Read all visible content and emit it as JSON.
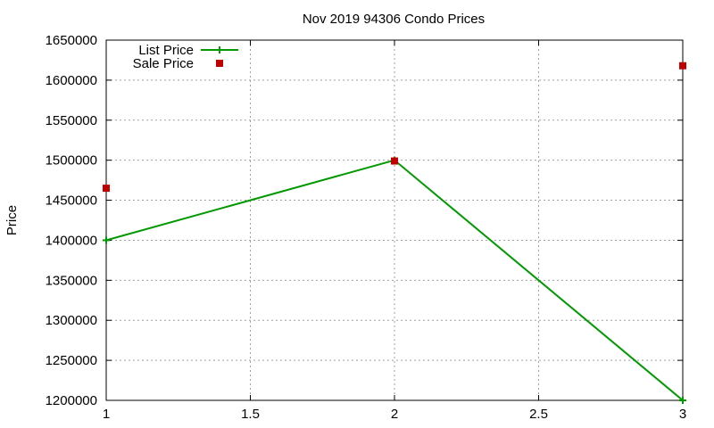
{
  "chart_data": {
    "type": "line",
    "title": "Nov 2019 94306 Condo Prices",
    "xlabel": "",
    "ylabel": "Price",
    "xlim": [
      1,
      3
    ],
    "ylim": [
      1200000,
      1650000
    ],
    "x_ticks": [
      "1",
      "1.5",
      "2",
      "2.5",
      "3"
    ],
    "y_ticks": [
      "1200000",
      "1250000",
      "1300000",
      "1350000",
      "1400000",
      "1450000",
      "1500000",
      "1550000",
      "1600000",
      "1650000"
    ],
    "grid": true,
    "legend_position": "top-left",
    "series": [
      {
        "name": "List Price",
        "style": "line-with-plus-markers",
        "color": "#009900",
        "points": [
          [
            1,
            1400000
          ],
          [
            2,
            1500000
          ],
          [
            3,
            1200000
          ]
        ]
      },
      {
        "name": "Sale Price",
        "style": "square-markers",
        "color": "#c00000",
        "points": [
          [
            1,
            1465000
          ],
          [
            2,
            1499000
          ],
          [
            3,
            1618000
          ]
        ]
      }
    ]
  }
}
